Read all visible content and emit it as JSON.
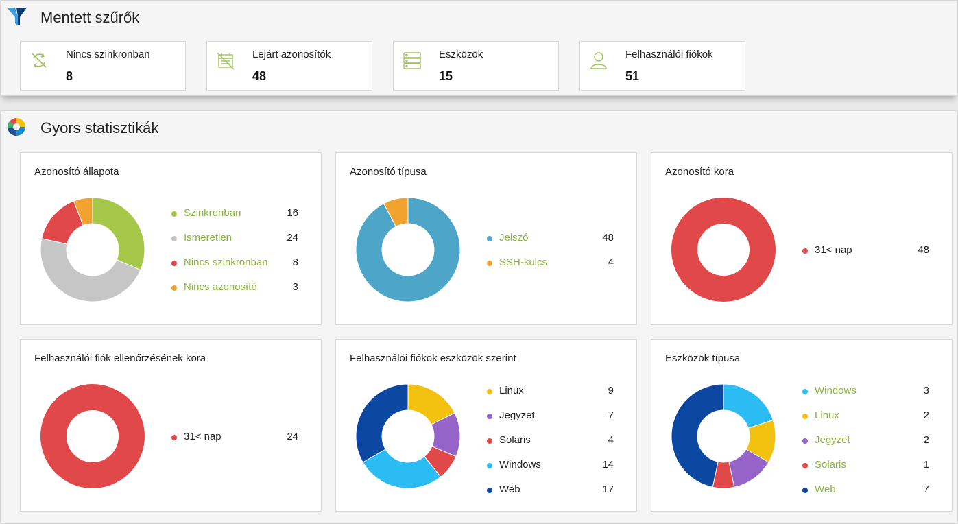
{
  "saved_filters": {
    "title": "Mentett szűrők",
    "icon": "filter-icon",
    "cards": [
      {
        "label": "Nincs szinkronban",
        "count": "8",
        "icon": "sync-off-icon"
      },
      {
        "label": "Lejárt azonosítók",
        "count": "48",
        "icon": "expired-calendar-icon"
      },
      {
        "label": "Eszközök",
        "count": "15",
        "icon": "server-icon"
      },
      {
        "label": "Felhasználói fiókok",
        "count": "51",
        "icon": "user-icon"
      }
    ]
  },
  "quick_stats": {
    "title": "Gyors statisztikák",
    "icon": "pie-chart-icon"
  },
  "colors": {
    "accent_green": "#8ab43c",
    "icon_green": "#9cc35a",
    "brand_blue": "#1b8ad1"
  },
  "chart_data": [
    {
      "type": "pie",
      "title": "Azonosító állapota",
      "clickable_legend": true,
      "series": [
        {
          "name": "Szinkronban",
          "value": 16,
          "color": "#a5c84a"
        },
        {
          "name": "Ismeretlen",
          "value": 24,
          "color": "#c6c6c6"
        },
        {
          "name": "Nincs szinkronban",
          "value": 8,
          "color": "#e0484a"
        },
        {
          "name": "Nincs azonosító",
          "value": 3,
          "color": "#f0a32e"
        }
      ]
    },
    {
      "type": "pie",
      "title": "Azonosító típusa",
      "clickable_legend": true,
      "series": [
        {
          "name": "Jelszó",
          "value": 48,
          "color": "#4da6c8"
        },
        {
          "name": "SSH-kulcs",
          "value": 4,
          "color": "#f0a32e"
        }
      ]
    },
    {
      "type": "pie",
      "title": "Azonosító kora",
      "clickable_legend": false,
      "series": [
        {
          "name": "31< nap",
          "value": 48,
          "color": "#e0484a"
        }
      ]
    },
    {
      "type": "pie",
      "title": "Felhasználói fiók ellenőrzésének kora",
      "clickable_legend": false,
      "series": [
        {
          "name": "31< nap",
          "value": 24,
          "color": "#e0484a"
        }
      ]
    },
    {
      "type": "pie",
      "title": "Felhasználói fiókok eszközök szerint",
      "clickable_legend": false,
      "series": [
        {
          "name": "Linux",
          "value": 9,
          "color": "#f3c10f"
        },
        {
          "name": "Jegyzet",
          "value": 7,
          "color": "#9664c8"
        },
        {
          "name": "Solaris",
          "value": 4,
          "color": "#e0484a"
        },
        {
          "name": "Windows",
          "value": 14,
          "color": "#2bbcf4"
        },
        {
          "name": "Web",
          "value": 17,
          "color": "#0c47a1"
        }
      ]
    },
    {
      "type": "pie",
      "title": "Eszközök típusa",
      "clickable_legend": true,
      "series": [
        {
          "name": "Windows",
          "value": 3,
          "color": "#2bbcf4"
        },
        {
          "name": "Linux",
          "value": 2,
          "color": "#f3c10f"
        },
        {
          "name": "Jegyzet",
          "value": 2,
          "color": "#9664c8"
        },
        {
          "name": "Solaris",
          "value": 1,
          "color": "#e0484a"
        },
        {
          "name": "Web",
          "value": 7,
          "color": "#0c47a1"
        }
      ]
    }
  ]
}
